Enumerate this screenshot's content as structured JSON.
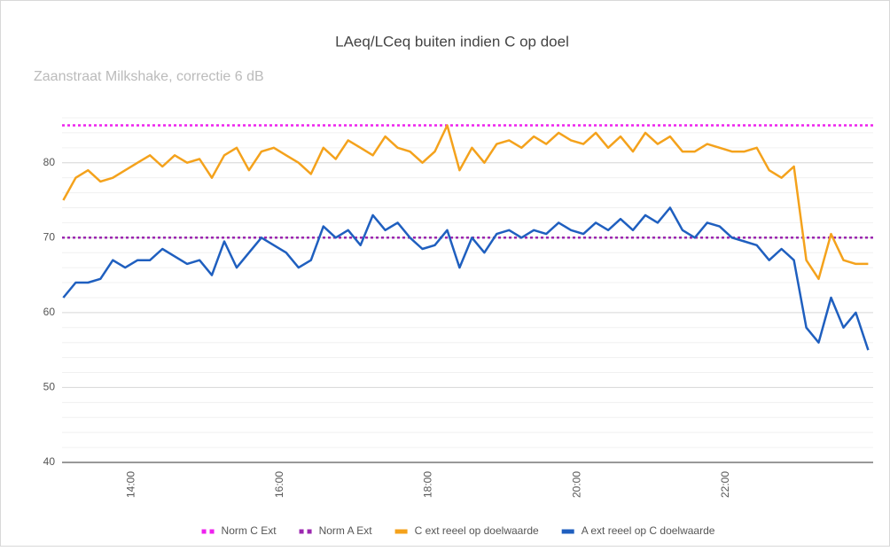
{
  "chart_data": {
    "type": "line",
    "title": "LAeq/LCeq buiten indien C op doel",
    "subtitle": "Zaanstraat Milkshake, correctie 6 dB",
    "x": [
      "13:05",
      "13:15",
      "13:25",
      "13:35",
      "13:45",
      "13:55",
      "14:05",
      "14:15",
      "14:25",
      "14:35",
      "14:45",
      "14:55",
      "15:05",
      "15:15",
      "15:25",
      "15:35",
      "15:45",
      "15:55",
      "16:05",
      "16:15",
      "16:25",
      "16:35",
      "16:45",
      "16:55",
      "17:05",
      "17:15",
      "17:25",
      "17:35",
      "17:45",
      "17:55",
      "18:05",
      "18:15",
      "18:25",
      "18:35",
      "18:45",
      "18:55",
      "19:05",
      "19:15",
      "19:25",
      "19:35",
      "19:45",
      "19:55",
      "20:05",
      "20:15",
      "20:25",
      "20:35",
      "20:45",
      "20:55",
      "21:05",
      "21:15",
      "21:25",
      "21:35",
      "21:45",
      "21:55",
      "22:05",
      "22:15",
      "22:25",
      "22:35",
      "22:45",
      "22:55",
      "23:05",
      "23:15",
      "23:25",
      "23:35",
      "23:45",
      "23:55"
    ],
    "xlim": [
      "13:04",
      "23:59"
    ],
    "xticks": [
      "14:00",
      "16:00",
      "18:00",
      "20:00",
      "22:00"
    ],
    "ylim": [
      40,
      86
    ],
    "yticks": [
      40,
      50,
      60,
      70,
      80
    ],
    "yminor": [
      42,
      44,
      46,
      48,
      52,
      54,
      56,
      58,
      62,
      64,
      66,
      68,
      72,
      74,
      76,
      78,
      82,
      84,
      86
    ],
    "grid": true,
    "reference_lines": [
      {
        "name": "Norm C Ext",
        "color": "#ee22ee",
        "value": 85
      },
      {
        "name": "Norm A Ext",
        "color": "#9c27b0",
        "value": 70
      }
    ],
    "series": [
      {
        "name": "C ext reeel op doelwaarde",
        "color": "#f4a21c",
        "values": [
          75,
          78,
          79,
          77.5,
          78,
          79,
          80,
          81,
          79.5,
          81,
          80,
          80.5,
          78,
          81,
          82,
          79,
          81.5,
          82,
          81,
          80,
          78.5,
          82,
          80.5,
          83,
          82,
          81,
          83.5,
          82,
          81.5,
          80,
          81.5,
          85,
          79,
          82,
          80,
          82.5,
          83,
          82,
          83.5,
          82.5,
          84,
          83,
          82.5,
          84,
          82,
          83.5,
          81.5,
          84,
          82.5,
          83.5,
          81.5,
          81.5,
          82.5,
          82,
          81.5,
          81.5,
          82,
          79,
          78,
          79.5,
          67,
          64.5,
          70.5,
          67,
          66.5,
          66.5
        ]
      },
      {
        "name": "A ext reeel op C doelwaarde",
        "color": "#1f5fbf",
        "values": [
          62,
          64,
          64,
          64.5,
          67,
          66,
          67,
          67,
          68.5,
          67.5,
          66.5,
          67,
          65,
          69.5,
          66,
          68,
          70,
          69,
          68,
          66,
          67,
          71.5,
          70,
          71,
          69,
          73,
          71,
          72,
          70,
          68.5,
          69,
          71,
          66,
          70,
          68,
          70.5,
          71,
          70,
          71,
          70.5,
          72,
          71,
          70.5,
          72,
          71,
          72.5,
          71,
          73,
          72,
          74,
          71,
          70,
          72,
          71.5,
          70,
          69.5,
          69,
          67,
          68.5,
          67,
          58,
          56,
          62,
          58,
          60,
          55
        ]
      }
    ],
    "legend": "bottom"
  }
}
